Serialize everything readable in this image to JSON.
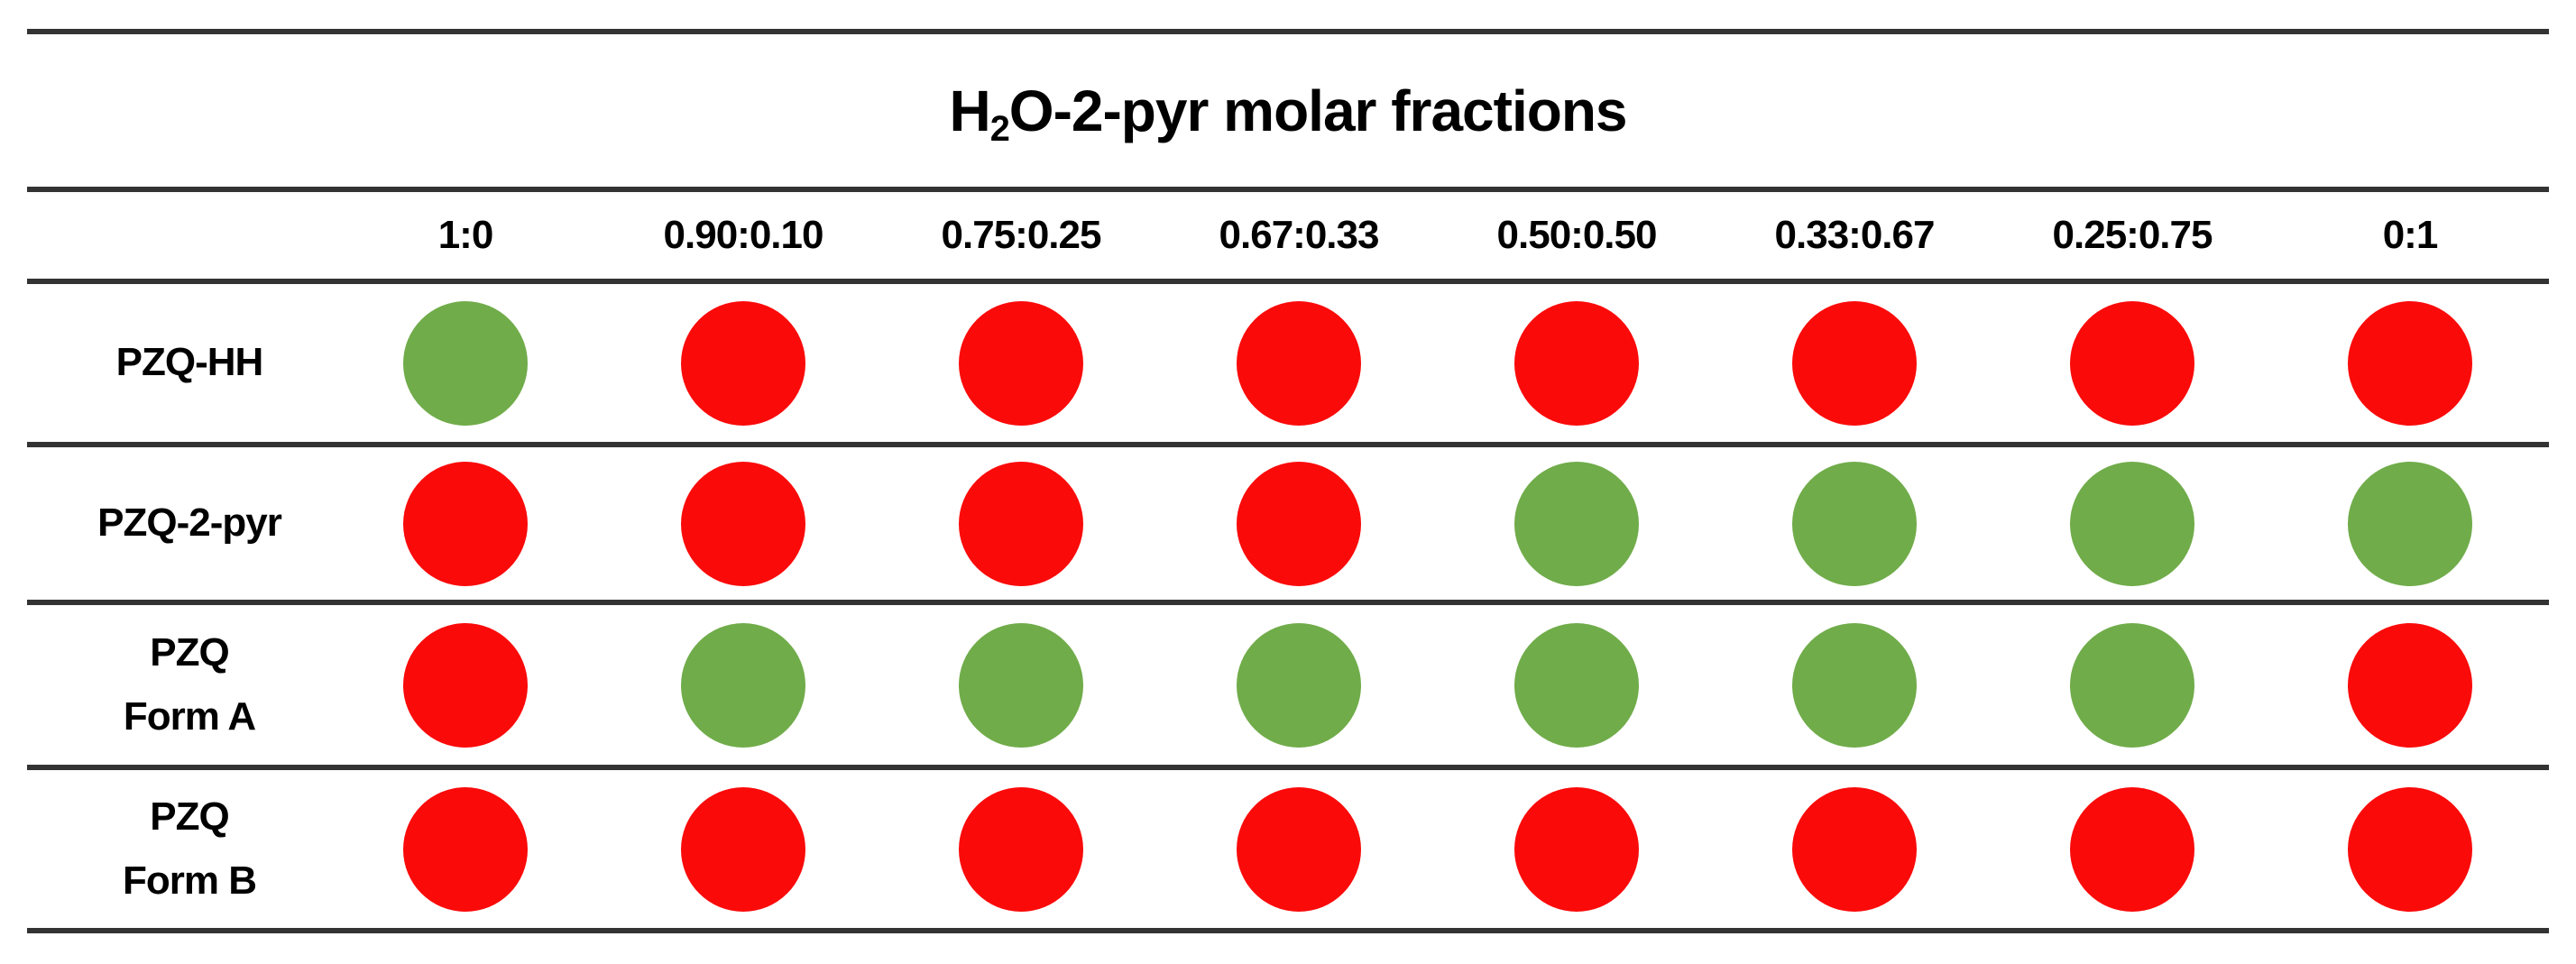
{
  "chart_data": {
    "type": "table",
    "title": "H₂O-2-pyr molar fractions",
    "title_parts": {
      "prefix": "H",
      "subscript": "2",
      "suffix": "O-2-pyr molar fractions"
    },
    "categories": [
      "1:0",
      "0.90:0.10",
      "0.75:0.25",
      "0.67:0.33",
      "0.50:0.50",
      "0.33:0.67",
      "0.25:0.75",
      "0:1"
    ],
    "rows": [
      {
        "label": "PZQ-HH",
        "states": [
          "green",
          "red",
          "red",
          "red",
          "red",
          "red",
          "red",
          "red"
        ]
      },
      {
        "label": "PZQ-2-pyr",
        "states": [
          "red",
          "red",
          "red",
          "red",
          "green",
          "green",
          "green",
          "green"
        ]
      },
      {
        "label": "PZQ\nForm A",
        "states": [
          "red",
          "green",
          "green",
          "green",
          "green",
          "green",
          "green",
          "red"
        ]
      },
      {
        "label": "PZQ\nForm B",
        "states": [
          "red",
          "red",
          "red",
          "red",
          "red",
          "red",
          "red",
          "red"
        ]
      }
    ],
    "legend_position": "none",
    "grid": "horizontal-rules-only"
  },
  "colors": {
    "green": "#70ac4a",
    "red": "#fb0a0a",
    "rule": "#333333",
    "text": "#000000",
    "background": "#ffffff"
  }
}
